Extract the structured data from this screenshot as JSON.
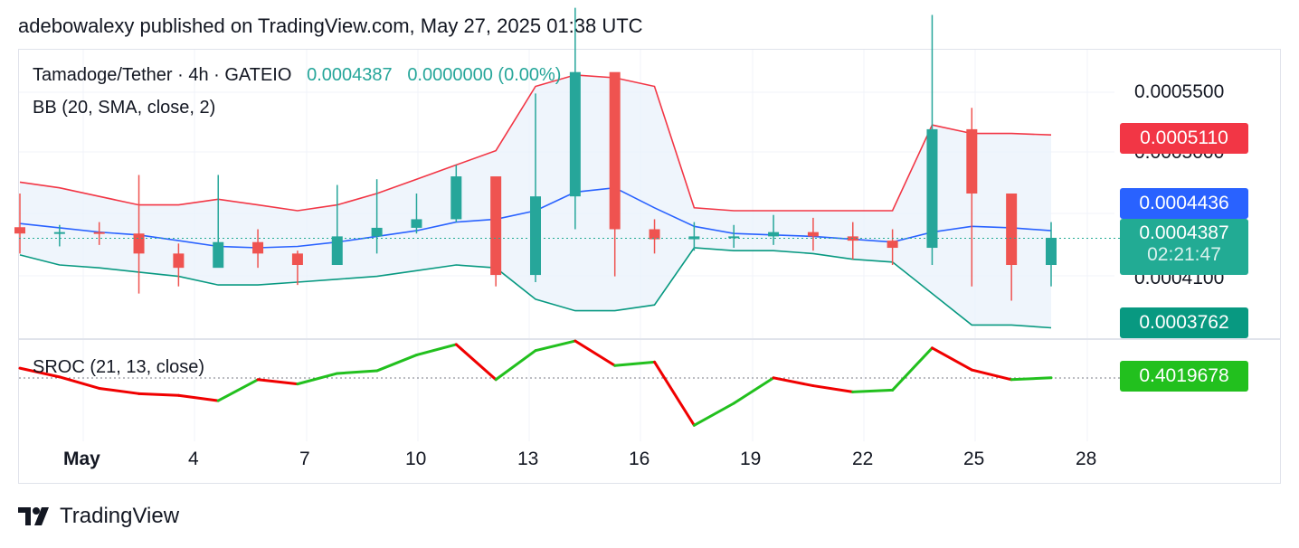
{
  "header": {
    "text": "adebowalexy published on TradingView.com, May 27, 2025 01:38 UTC"
  },
  "legend": {
    "symbol": "Tamadoge/Tether · 4h · GATEIO",
    "last": "0.0004387",
    "change": "0.0000000 (0.00%)",
    "bb": "BB (20, SMA, close, 2)",
    "sroc": "SROC (21, 13, close)"
  },
  "price_axis": {
    "ticks": [
      "0.0005500",
      "0.0005000",
      "0.0004100"
    ]
  },
  "price_boxes": {
    "bb_upper": {
      "value": "0.0005110",
      "color": "#f23645"
    },
    "bb_basis": {
      "value": "0.0004436",
      "color": "#2962ff"
    },
    "last": {
      "value": "0.0004387",
      "countdown": "02:21:47",
      "color": "#22ab94"
    },
    "bb_lower": {
      "value": "0.0003762",
      "color": "#089981"
    },
    "sroc": {
      "value": "0.4019678",
      "color": "#22c01e"
    }
  },
  "time_axis": {
    "labels": [
      "May",
      "4",
      "7",
      "10",
      "13",
      "16",
      "19",
      "22",
      "25",
      "28"
    ]
  },
  "footer": {
    "brand": "TradingView",
    "logo_icon": "tradingview-logo-icon"
  },
  "colors": {
    "up": "#26a69a",
    "down": "#ef5350",
    "bb_upper": "#f23645",
    "bb_basis": "#2962ff",
    "bb_lower": "#089981",
    "bb_fill": "#e8f1fb",
    "sroc_up": "#22c01e",
    "sroc_down": "#f00000"
  },
  "chart_data": [
    {
      "type": "candlestick",
      "title": "Tamadoge/Tether · 4h · GATEIO",
      "x": [
        "May 1",
        "May 2",
        "May 3",
        "May 4",
        "May 5",
        "May 6",
        "May 7",
        "May 8",
        "May 9",
        "May 10",
        "May 11",
        "May 12",
        "May 13",
        "May 14",
        "May 15",
        "May 16",
        "May 17",
        "May 18",
        "May 19",
        "May 20",
        "May 21",
        "May 22",
        "May 23",
        "May 24",
        "May 25",
        "May 26",
        "May 27"
      ],
      "close": [
        0.000442,
        0.000443,
        0.000442,
        0.000428,
        0.000418,
        0.000436,
        0.000428,
        0.00042,
        0.00044,
        0.000446,
        0.000452,
        0.000482,
        0.000413,
        0.000468,
        0.000555,
        0.000445,
        0.000438,
        0.00044,
        0.00044,
        0.000443,
        0.00044,
        0.000437,
        0.000432,
        0.000515,
        0.00047,
        0.00042,
        0.000439
      ],
      "high": [
        0.00047,
        0.000448,
        0.00045,
        0.000483,
        0.000435,
        0.000483,
        0.000445,
        0.00043,
        0.000476,
        0.00048,
        0.00047,
        0.00049,
        0.000462,
        0.00054,
        0.0006,
        0.000515,
        0.000452,
        0.00045,
        0.000448,
        0.000455,
        0.000453,
        0.00045,
        0.000445,
        0.000595,
        0.00053,
        0.000448,
        0.00045
      ],
      "low": [
        0.000428,
        0.000433,
        0.000434,
        0.0004,
        0.000405,
        0.00042,
        0.000418,
        0.000406,
        0.000425,
        0.000428,
        0.000442,
        0.00045,
        0.000405,
        0.000408,
        0.000445,
        0.000412,
        0.000428,
        0.00043,
        0.000432,
        0.000434,
        0.00043,
        0.000424,
        0.00042,
        0.00042,
        0.000405,
        0.000395,
        0.000405
      ],
      "bb_upper": [
        0.000478,
        0.000474,
        0.000468,
        0.000462,
        0.000462,
        0.000466,
        0.000462,
        0.000458,
        0.000462,
        0.00047,
        0.00048,
        0.00049,
        0.0005,
        0.000545,
        0.000553,
        0.000551,
        0.000545,
        0.00046,
        0.000458,
        0.000458,
        0.000458,
        0.000458,
        0.000458,
        0.000518,
        0.000512,
        0.000512,
        0.000511
      ],
      "bb_basis": [
        0.000449,
        0.000446,
        0.000443,
        0.000441,
        0.000437,
        0.000433,
        0.000432,
        0.000433,
        0.000436,
        0.00044,
        0.000444,
        0.00045,
        0.000452,
        0.000458,
        0.000471,
        0.000474,
        0.00046,
        0.000447,
        0.000442,
        0.000441,
        0.00044,
        0.000438,
        0.000436,
        0.000443,
        0.000447,
        0.000446,
        0.000444
      ],
      "bb_lower": [
        0.000427,
        0.00042,
        0.000418,
        0.000415,
        0.000412,
        0.000406,
        0.000406,
        0.000408,
        0.00041,
        0.000412,
        0.000416,
        0.00042,
        0.000418,
        0.000396,
        0.000388,
        0.000388,
        0.000392,
        0.000432,
        0.00043,
        0.00043,
        0.000428,
        0.000424,
        0.000422,
        0.0004,
        0.000378,
        0.000378,
        0.000376
      ],
      "ylim": [
        0.00037,
        0.00057
      ],
      "last": 0.0004387,
      "grid": true
    },
    {
      "type": "line",
      "title": "SROC (21, 13, close)",
      "x": [
        "May 1",
        "May 2",
        "May 3",
        "May 4",
        "May 5",
        "May 6",
        "May 7",
        "May 8",
        "May 9",
        "May 10",
        "May 11",
        "May 12",
        "May 13",
        "May 14",
        "May 15",
        "May 16",
        "May 17",
        "May 18",
        "May 19",
        "May 20",
        "May 21",
        "May 22",
        "May 23",
        "May 24",
        "May 25",
        "May 26",
        "May 27"
      ],
      "y": [
        1.5,
        0.5,
        -0.8,
        -1.4,
        -1.6,
        -2.2,
        0.2,
        -0.3,
        0.9,
        1.2,
        3.0,
        4.2,
        0.2,
        3.5,
        4.6,
        1.8,
        2.2,
        -5.0,
        -2.5,
        0.4,
        -0.5,
        -1.2,
        -1.0,
        3.8,
        1.3,
        0.2,
        0.4019678
      ],
      "ylim": [
        -6.0,
        4.5
      ],
      "zero_line": true
    }
  ]
}
